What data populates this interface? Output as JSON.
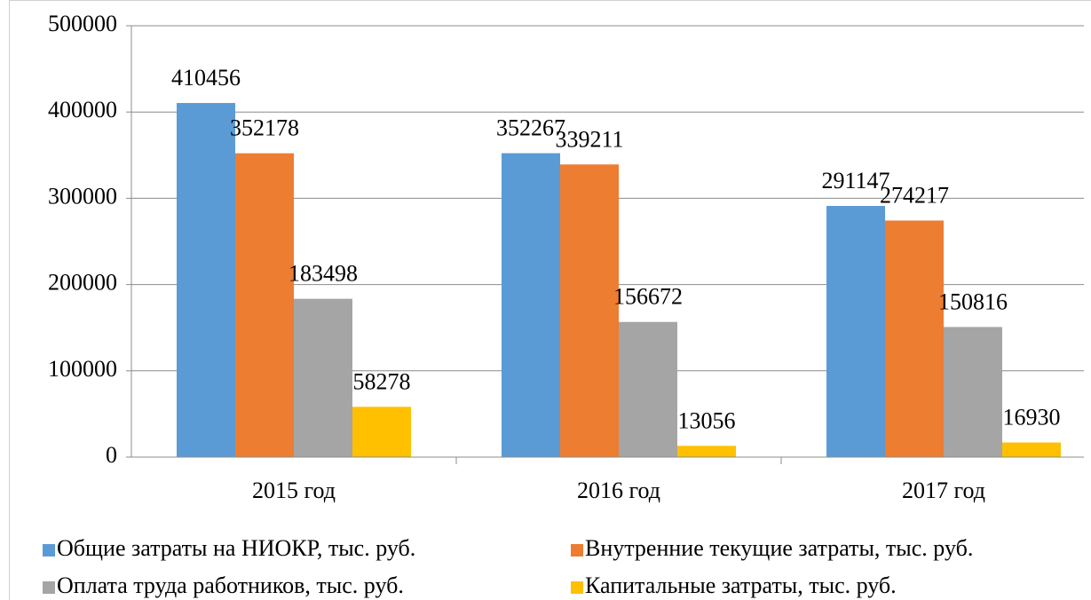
{
  "chart_data": {
    "type": "bar",
    "categories": [
      "2015 год",
      "2016 год",
      "2017 год"
    ],
    "series": [
      {
        "name": "Общие затраты на НИОКР, тыс. руб.",
        "color": "#5b9bd5",
        "values": [
          410456,
          352267,
          291147
        ]
      },
      {
        "name": "Внутренние текущие затраты, тыс. руб.",
        "color": "#ed7d31",
        "values": [
          352178,
          339211,
          274217
        ]
      },
      {
        "name": "Оплата труда работников, тыс. руб.",
        "color": "#a5a5a5",
        "values": [
          183498,
          156672,
          150816
        ]
      },
      {
        "name": "Капитальные затраты, тыс. руб.",
        "color": "#ffc000",
        "values": [
          58278,
          13056,
          16930
        ]
      }
    ],
    "ylim": [
      0,
      500000
    ],
    "yticks": [
      0,
      100000,
      200000,
      300000,
      400000,
      500000
    ],
    "grid": true,
    "legend": "bottom"
  }
}
